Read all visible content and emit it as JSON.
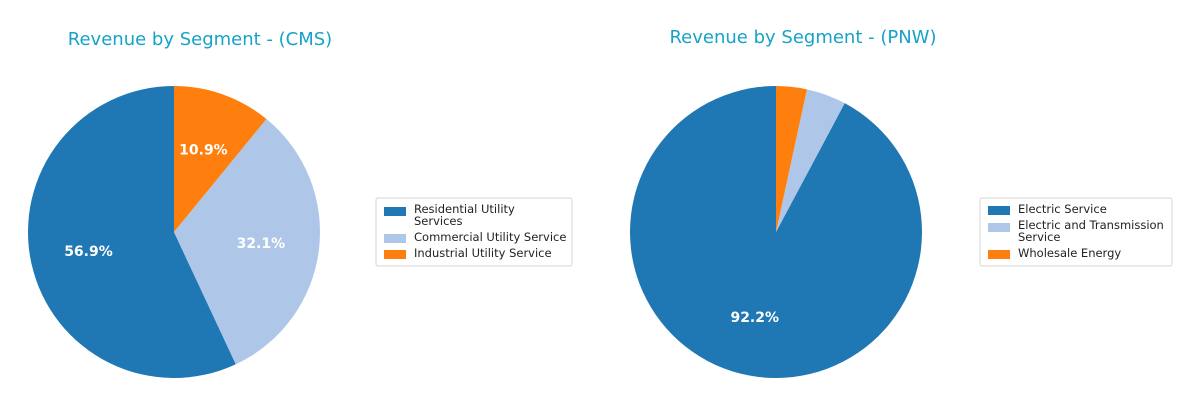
{
  "chart_data": [
    {
      "type": "pie",
      "title": "Revenue by Segment - (CMS)",
      "labels": [
        "Residential Utility Services",
        "Commercial Utility Service",
        "Industrial Utility Service"
      ],
      "legend_lines": [
        [
          "Residential Utility",
          "Services"
        ],
        [
          "Commercial Utility Service"
        ],
        [
          "Industrial Utility Service"
        ]
      ],
      "values": [
        56.9,
        32.1,
        10.9
      ],
      "pct_labels": [
        "56.9%",
        "32.1%",
        "10.9%"
      ],
      "show_pct": [
        true,
        true,
        true
      ],
      "colors": [
        "#1f77b4",
        "#aec7e8",
        "#ff7f0e"
      ],
      "start_angle_deg": 90,
      "direction": "counterclockwise",
      "legend_position": "right"
    },
    {
      "type": "pie",
      "title": "Revenue by Segment - (PNW)",
      "labels": [
        "Electric Service",
        "Electric and Transmission Service",
        "Wholesale Energy"
      ],
      "legend_lines": [
        [
          "Electric Service"
        ],
        [
          "Electric and Transmission",
          "Service"
        ],
        [
          "Wholesale Energy"
        ]
      ],
      "values": [
        92.2,
        4.4,
        3.4
      ],
      "pct_labels": [
        "92.2%",
        "4.4%",
        "3.4%"
      ],
      "show_pct": [
        true,
        false,
        false
      ],
      "colors": [
        "#1f77b4",
        "#aec7e8",
        "#ff7f0e"
      ],
      "start_angle_deg": 90,
      "direction": "counterclockwise",
      "legend_position": "right"
    }
  ]
}
